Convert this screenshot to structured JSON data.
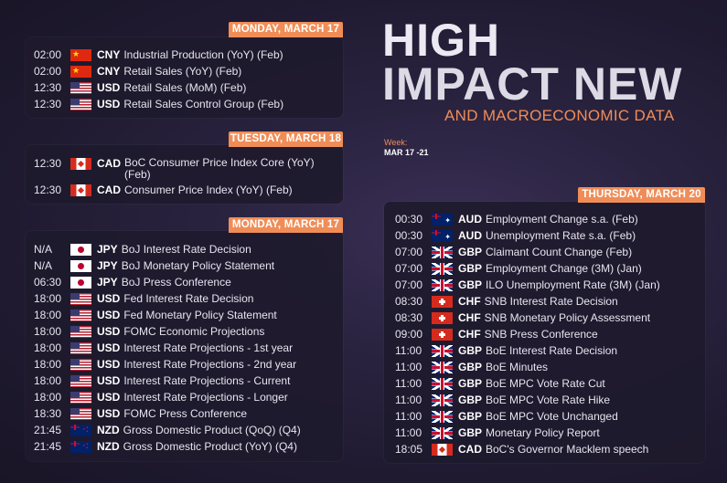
{
  "headline": {
    "line1": "HIGH",
    "line2": "IMPACT NEW",
    "subtitle": "AND MACROECONOMIC DATA",
    "week_label": "Week:",
    "week_value": "MAR 17 -21"
  },
  "colors": {
    "accent": "#f08d57",
    "card": "#1e1a2c",
    "background": "#231d36"
  },
  "card1": {
    "date": "MONDAY, MARCH 17",
    "events": [
      {
        "time": "02:00",
        "flag": "cn-flag-icon",
        "currency": "CNY",
        "event": "Industrial Production (YoY) (Feb)"
      },
      {
        "time": "02:00",
        "flag": "cn-flag-icon",
        "currency": "CNY",
        "event": "Retail Sales (YoY) (Feb)"
      },
      {
        "time": "12:30",
        "flag": "us-flag-icon",
        "currency": "USD",
        "event": "Retail Sales (MoM) (Feb)"
      },
      {
        "time": "12:30",
        "flag": "us-flag-icon",
        "currency": "USD",
        "event": "Retail Sales Control Group (Feb)"
      }
    ]
  },
  "card2": {
    "date": "TUESDAY, MARCH 18",
    "events": [
      {
        "time": "12:30",
        "flag": "ca-flag-icon",
        "currency": "CAD",
        "event": "BoC Consumer Price Index Core (YoY) (Feb)"
      },
      {
        "time": "12:30",
        "flag": "ca-flag-icon",
        "currency": "CAD",
        "event": "Consumer Price Index (YoY) (Feb)"
      }
    ]
  },
  "card3": {
    "date": "MONDAY, MARCH 17",
    "events": [
      {
        "time": "N/A",
        "flag": "jp-flag-icon",
        "currency": "JPY",
        "event": "BoJ Interest Rate Decision"
      },
      {
        "time": "N/A",
        "flag": "jp-flag-icon",
        "currency": "JPY",
        "event": "BoJ Monetary Policy Statement"
      },
      {
        "time": "06:30",
        "flag": "jp-flag-icon",
        "currency": "JPY",
        "event": "BoJ Press Conference"
      },
      {
        "time": "18:00",
        "flag": "us-flag-icon",
        "currency": "USD",
        "event": "Fed Interest Rate Decision"
      },
      {
        "time": "18:00",
        "flag": "us-flag-icon",
        "currency": "USD",
        "event": "Fed Monetary Policy Statement"
      },
      {
        "time": "18:00",
        "flag": "us-flag-icon",
        "currency": "USD",
        "event": "FOMC Economic Projections"
      },
      {
        "time": "18:00",
        "flag": "us-flag-icon",
        "currency": "USD",
        "event": "Interest Rate Projections - 1st year"
      },
      {
        "time": "18:00",
        "flag": "us-flag-icon",
        "currency": "USD",
        "event": "Interest Rate Projections - 2nd year"
      },
      {
        "time": "18:00",
        "flag": "us-flag-icon",
        "currency": "USD",
        "event": "Interest Rate Projections - Current"
      },
      {
        "time": "18:00",
        "flag": "us-flag-icon",
        "currency": "USD",
        "event": "Interest Rate Projections - Longer"
      },
      {
        "time": "18:30",
        "flag": "us-flag-icon",
        "currency": "USD",
        "event": "FOMC Press Conference"
      },
      {
        "time": "21:45",
        "flag": "nz-flag-icon",
        "currency": "NZD",
        "event": "Gross Domestic Product (QoQ) (Q4)"
      },
      {
        "time": "21:45",
        "flag": "nz-flag-icon",
        "currency": "NZD",
        "event": "Gross Domestic Product (YoY) (Q4)"
      }
    ]
  },
  "card4": {
    "date": "THURSDAY, MARCH 20",
    "events": [
      {
        "time": "00:30",
        "flag": "au-flag-icon",
        "currency": "AUD",
        "event": "Employment Change s.a. (Feb)"
      },
      {
        "time": "00:30",
        "flag": "au-flag-icon",
        "currency": "AUD",
        "event": "Unemployment Rate s.a. (Feb)"
      },
      {
        "time": "07:00",
        "flag": "gb-flag-icon",
        "currency": "GBP",
        "event": "Claimant Count Change (Feb)"
      },
      {
        "time": "07:00",
        "flag": "gb-flag-icon",
        "currency": "GBP",
        "event": "Employment Change (3M) (Jan)"
      },
      {
        "time": "07:00",
        "flag": "gb-flag-icon",
        "currency": "GBP",
        "event": "ILO Unemployment Rate (3M) (Jan)"
      },
      {
        "time": "08:30",
        "flag": "ch-flag-icon",
        "currency": "CHF",
        "event": "SNB Interest Rate Decision"
      },
      {
        "time": "08:30",
        "flag": "ch-flag-icon",
        "currency": "CHF",
        "event": "SNB Monetary Policy Assessment"
      },
      {
        "time": "09:00",
        "flag": "ch-flag-icon",
        "currency": "CHF",
        "event": "SNB Press Conference"
      },
      {
        "time": "11:00",
        "flag": "gb-flag-icon",
        "currency": "GBP",
        "event": "BoE Interest Rate Decision"
      },
      {
        "time": "11:00",
        "flag": "gb-flag-icon",
        "currency": "GBP",
        "event": "BoE Minutes"
      },
      {
        "time": "11:00",
        "flag": "gb-flag-icon",
        "currency": "GBP",
        "event": "BoE MPC Vote Rate Cut"
      },
      {
        "time": "11:00",
        "flag": "gb-flag-icon",
        "currency": "GBP",
        "event": "BoE MPC Vote Rate Hike"
      },
      {
        "time": "11:00",
        "flag": "gb-flag-icon",
        "currency": "GBP",
        "event": "BoE MPC Vote Unchanged"
      },
      {
        "time": "11:00",
        "flag": "gb-flag-icon",
        "currency": "GBP",
        "event": "Monetary Policy Report"
      },
      {
        "time": "18:05",
        "flag": "ca-flag-icon",
        "currency": "CAD",
        "event": "BoC's Governor Macklem speech"
      }
    ]
  }
}
